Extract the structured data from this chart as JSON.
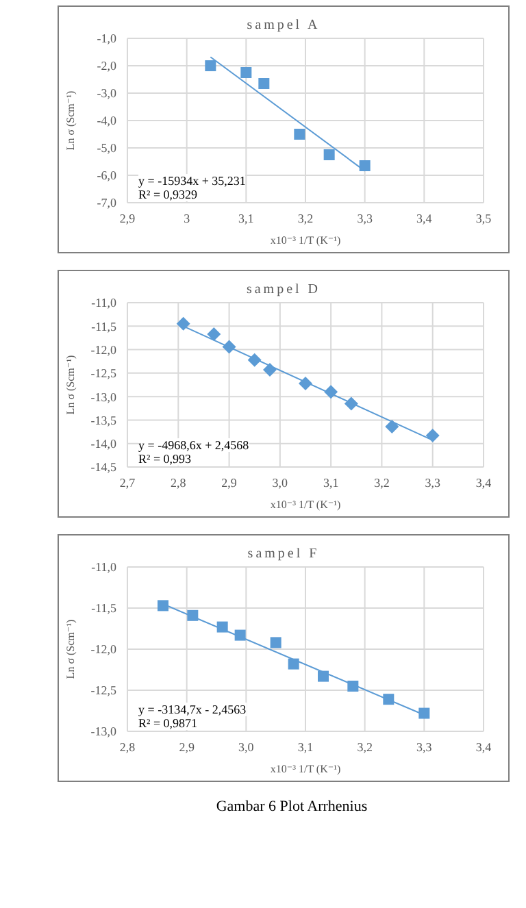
{
  "chart_data": [
    {
      "type": "scatter",
      "title": "sampel  A",
      "xlabel": "x10⁻³ 1/T (K⁻¹)",
      "ylabel": "Ln σ (Scm⁻¹)",
      "grid": true,
      "xlim": [
        2.9,
        3.5
      ],
      "xticks": [
        {
          "value": 2.9,
          "label": "2,9"
        },
        3,
        {
          "value": 3.1,
          "label": "3,1"
        },
        {
          "value": 3.2,
          "label": "3,2"
        },
        {
          "value": 3.3,
          "label": "3,3"
        },
        {
          "value": 3.4,
          "label": "3,4"
        },
        {
          "value": 3.5,
          "label": "3,5"
        }
      ],
      "ylim": [
        -7,
        -1
      ],
      "yticks": [
        {
          "value": -7,
          "label": "-7,0"
        },
        {
          "value": -6,
          "label": "-6,0"
        },
        {
          "value": -5,
          "label": "-5,0"
        },
        {
          "value": -4,
          "label": "-4,0"
        },
        {
          "value": -3,
          "label": "-3,0"
        },
        {
          "value": -2,
          "label": "-2,0"
        },
        {
          "value": -1,
          "label": "-1,0"
        }
      ],
      "series": [
        {
          "type": "scatter",
          "marker": "square",
          "color": "#5b9bd5",
          "x": [
            3.04,
            3.1,
            3.13,
            3.19,
            3.24,
            3.3
          ],
          "values": [
            -2.0,
            -2.25,
            -2.65,
            -4.5,
            -5.25,
            -5.65
          ]
        },
        {
          "type": "line",
          "marker": "none",
          "color": "#5b9bd5",
          "x": [
            3.04,
            3.3
          ],
          "values": [
            -1.68,
            -5.84
          ]
        }
      ],
      "annotations": [
        "y = -15934x + 35,231",
        "R² = 0,9329"
      ]
    },
    {
      "type": "scatter",
      "title": "sampel  D",
      "xlabel": "x10⁻³ 1/T (K⁻¹)",
      "ylabel": "Ln σ (Scm⁻¹)",
      "grid": true,
      "xlim": [
        2.7,
        3.4
      ],
      "xticks": [
        {
          "value": 2.7,
          "label": "2,7"
        },
        {
          "value": 2.8,
          "label": "2,8"
        },
        {
          "value": 2.9,
          "label": "2,9"
        },
        {
          "value": 3.0,
          "label": "3,0"
        },
        {
          "value": 3.1,
          "label": "3,1"
        },
        {
          "value": 3.2,
          "label": "3,2"
        },
        {
          "value": 3.3,
          "label": "3,3"
        },
        {
          "value": 3.4,
          "label": "3,4"
        }
      ],
      "ylim": [
        -14.5,
        -11
      ],
      "yticks": [
        {
          "value": -14.5,
          "label": "-14,5"
        },
        {
          "value": -14,
          "label": "-14,0"
        },
        {
          "value": -13.5,
          "label": "-13,5"
        },
        {
          "value": -13,
          "label": "-13,0"
        },
        {
          "value": -12.5,
          "label": "-12,5"
        },
        {
          "value": -12,
          "label": "-12,0"
        },
        {
          "value": -11.5,
          "label": "-11,5"
        },
        {
          "value": -11,
          "label": "-11,0"
        }
      ],
      "series": [
        {
          "type": "scatter",
          "marker": "diamond",
          "color": "#5b9bd5",
          "x": [
            2.81,
            2.87,
            2.9,
            2.95,
            2.98,
            3.05,
            3.1,
            3.14,
            3.22,
            3.3
          ],
          "values": [
            -11.45,
            -11.67,
            -11.94,
            -12.22,
            -12.43,
            -12.72,
            -12.9,
            -13.15,
            -13.64,
            -13.83
          ]
        },
        {
          "type": "line",
          "marker": "none",
          "color": "#5b9bd5",
          "x": [
            2.81,
            3.3
          ],
          "values": [
            -11.5,
            -13.93
          ]
        }
      ],
      "annotations": [
        "y = -4968,6x + 2,4568",
        "R² = 0,993"
      ]
    },
    {
      "type": "scatter",
      "title": "sampel  F",
      "xlabel": "x10⁻³ 1/T (K⁻¹)",
      "ylabel": "Ln σ (Scm⁻¹)",
      "grid": true,
      "xlim": [
        2.8,
        3.4
      ],
      "xticks": [
        {
          "value": 2.8,
          "label": "2,8"
        },
        {
          "value": 2.9,
          "label": "2,9"
        },
        {
          "value": 3.0,
          "label": "3,0"
        },
        {
          "value": 3.1,
          "label": "3,1"
        },
        {
          "value": 3.2,
          "label": "3,2"
        },
        {
          "value": 3.3,
          "label": "3,3"
        },
        {
          "value": 3.4,
          "label": "3,4"
        }
      ],
      "ylim": [
        -13,
        -11
      ],
      "yticks": [
        {
          "value": -13,
          "label": "-13,0"
        },
        {
          "value": -12.5,
          "label": "-12,5"
        },
        {
          "value": -12,
          "label": "-12,0"
        },
        {
          "value": -11.5,
          "label": "-11,5"
        },
        {
          "value": -11,
          "label": "-11,0"
        }
      ],
      "series": [
        {
          "type": "scatter",
          "marker": "square",
          "color": "#5b9bd5",
          "x": [
            2.86,
            2.91,
            2.96,
            2.99,
            3.05,
            3.08,
            3.13,
            3.18,
            3.24,
            3.3
          ],
          "values": [
            -11.47,
            -11.59,
            -11.73,
            -11.83,
            -11.92,
            -12.18,
            -12.33,
            -12.45,
            -12.61,
            -12.78
          ]
        },
        {
          "type": "line",
          "marker": "none",
          "color": "#5b9bd5",
          "x": [
            2.86,
            3.3
          ],
          "values": [
            -11.45,
            -12.8
          ]
        }
      ],
      "annotations": [
        "y = -3134,7x - 2,4563",
        "R² = 0,9871",
        "Gambar 6  Plot Arrhenius"
      ]
    }
  ]
}
